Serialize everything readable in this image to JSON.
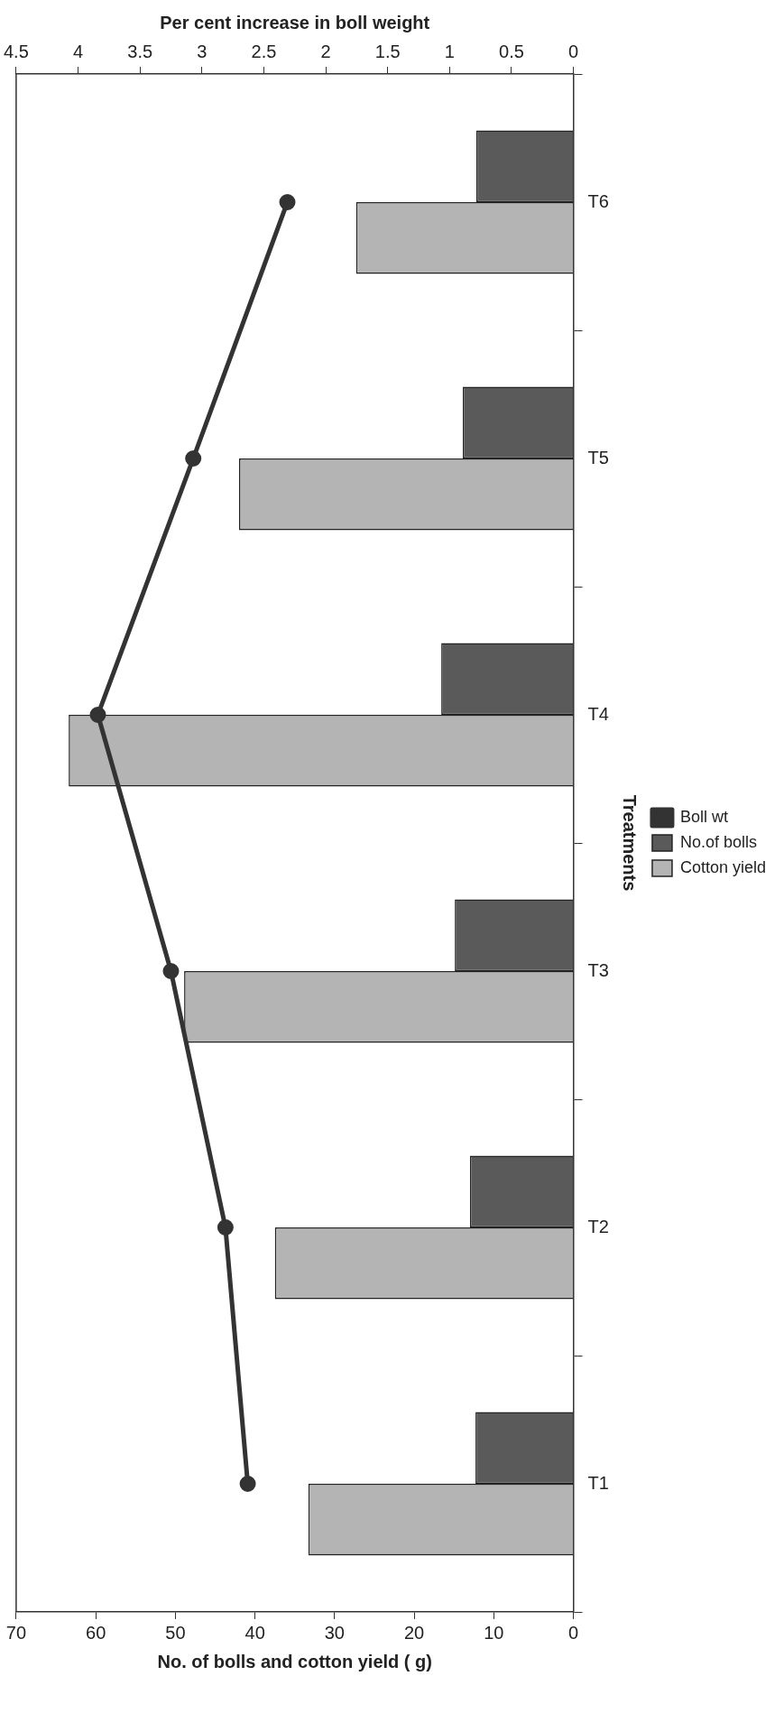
{
  "chart_data": {
    "type": "bar",
    "orientation": "horizontal",
    "xlabel": "No. of bolls and cotton yield ( g)",
    "ylabel": "Treatments",
    "x2label": "Per cent increase in boll weight",
    "categories": [
      "T6",
      "T5",
      "T4",
      "T3",
      "T2",
      "T1"
    ],
    "series": [
      {
        "name": "No.of bolls",
        "color": "#5a5a5a",
        "values": [
          12.2,
          13.9,
          16.6,
          14.9,
          13.0,
          12.3
        ]
      },
      {
        "name": "Cotton yield",
        "color": "#b4b4b4",
        "values": [
          27.3,
          42.0,
          63.4,
          48.9,
          37.5,
          33.3
        ]
      },
      {
        "name": "Boll wt",
        "type": "line",
        "axis": "x2",
        "color": "#333333",
        "values": [
          2.31,
          3.07,
          3.84,
          3.25,
          2.81,
          2.63
        ]
      }
    ],
    "xlim": [
      70,
      0
    ],
    "xticks": [
      70,
      60,
      50,
      40,
      30,
      20,
      10,
      0
    ],
    "x2lim": [
      4.5,
      0
    ],
    "x2ticks": [
      4.5,
      4,
      3.5,
      3,
      2.5,
      2,
      1.5,
      1,
      0.5,
      0
    ],
    "grid": false,
    "legend": "right",
    "marker": "circle"
  }
}
